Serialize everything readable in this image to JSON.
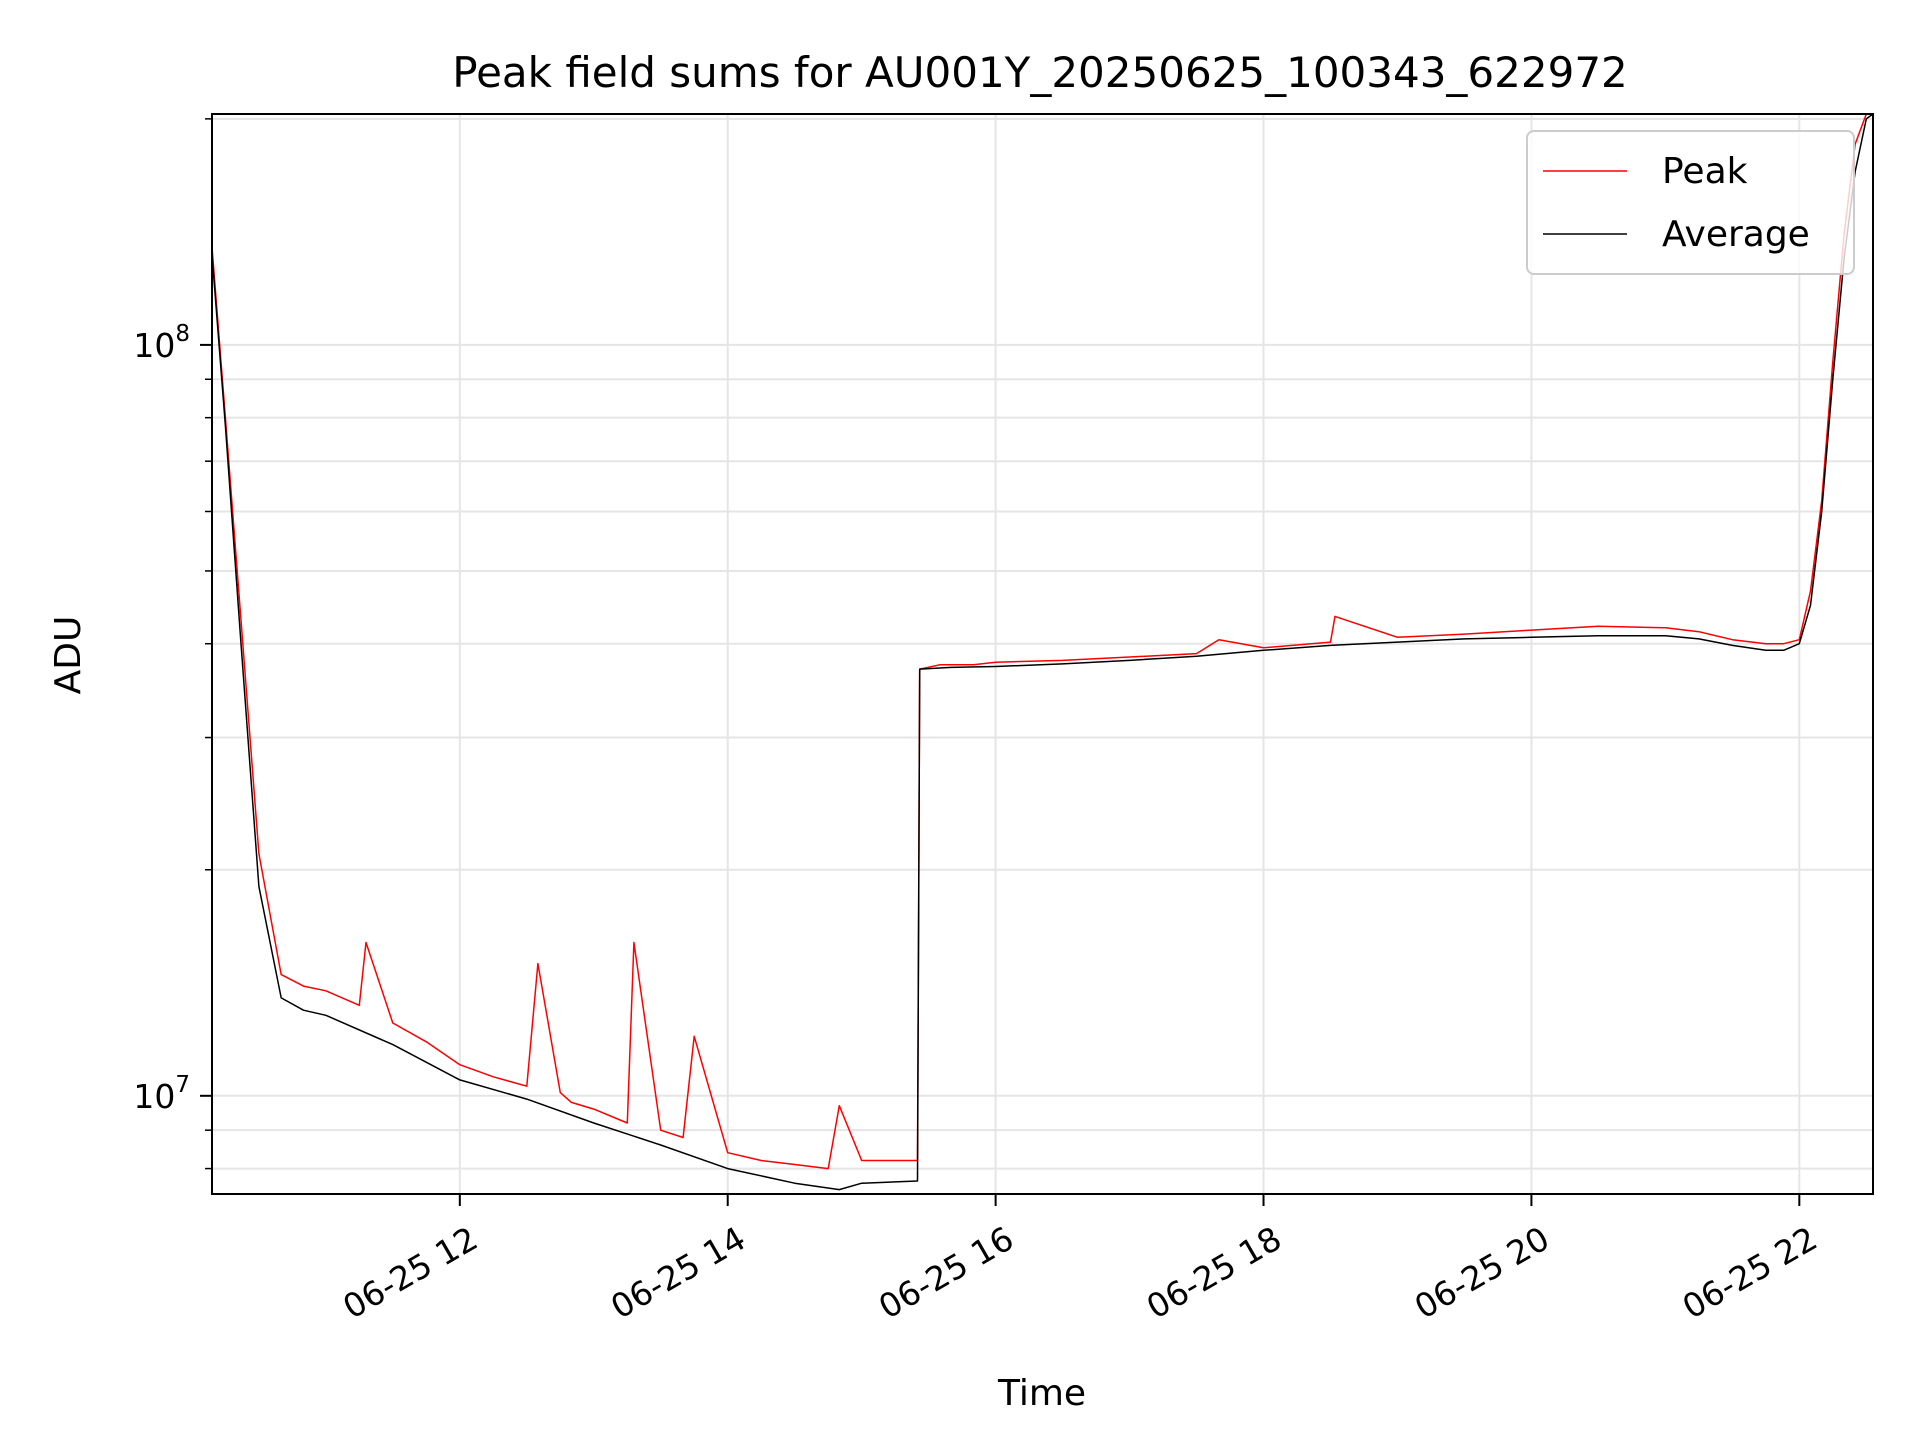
{
  "chart_data": {
    "type": "line",
    "title": "Peak field sums for AU001Y_20250625_100343_622972",
    "xlabel": "Time",
    "ylabel": "ADU",
    "x_scale": "time",
    "y_scale": "log",
    "grid": true,
    "legend_position": "top-right",
    "xlim": [
      "06-25 10:09",
      "06-25 22:33"
    ],
    "ylim": [
      7400000,
      203000000
    ],
    "x_ticks": [
      {
        "t": "06-25 12:00",
        "label": "06-25 12"
      },
      {
        "t": "06-25 14:00",
        "label": "06-25 14"
      },
      {
        "t": "06-25 16:00",
        "label": "06-25 16"
      },
      {
        "t": "06-25 18:00",
        "label": "06-25 18"
      },
      {
        "t": "06-25 20:00",
        "label": "06-25 20"
      },
      {
        "t": "06-25 22:00",
        "label": "06-25 22"
      }
    ],
    "y_ticks": [
      {
        "value": 10000000,
        "base": "10",
        "exp": "7"
      },
      {
        "value": 100000000,
        "base": "10",
        "exp": "8"
      }
    ],
    "series": [
      {
        "name": "Peak",
        "color": "#ff0000",
        "x": [
          "06-25 10:09",
          "06-25 10:15",
          "06-25 10:22",
          "06-25 10:30",
          "06-25 10:40",
          "06-25 10:50",
          "06-25 11:00",
          "06-25 11:15",
          "06-25 11:18",
          "06-25 11:30",
          "06-25 11:45",
          "06-25 12:00",
          "06-25 12:15",
          "06-25 12:30",
          "06-25 12:35",
          "06-25 12:45",
          "06-25 12:50",
          "06-25 13:00",
          "06-25 13:15",
          "06-25 13:18",
          "06-25 13:30",
          "06-25 13:40",
          "06-25 13:45",
          "06-25 14:00",
          "06-25 14:15",
          "06-25 14:30",
          "06-25 14:45",
          "06-25 14:50",
          "06-25 15:00",
          "06-25 15:15",
          "06-25 15:25",
          "06-25 15:26",
          "06-25 15:35",
          "06-25 15:50",
          "06-25 16:00",
          "06-25 16:30",
          "06-25 17:00",
          "06-25 17:30",
          "06-25 17:40",
          "06-25 18:00",
          "06-25 18:30",
          "06-25 18:32",
          "06-25 19:00",
          "06-25 19:30",
          "06-25 20:00",
          "06-25 20:30",
          "06-25 21:00",
          "06-25 21:15",
          "06-25 21:30",
          "06-25 21:45",
          "06-25 21:53",
          "06-25 22:00",
          "06-25 22:05",
          "06-25 22:10",
          "06-25 22:15",
          "06-25 22:20",
          "06-25 22:25",
          "06-25 22:30",
          "06-25 22:33"
        ],
        "y": [
          135000000,
          80000000,
          43000000,
          21000000,
          14500000,
          14000000,
          13800000,
          13200000,
          16000000,
          12500000,
          11800000,
          11000000,
          10600000,
          10300000,
          15000000,
          10100000,
          9800000,
          9600000,
          9200000,
          16000000,
          9000000,
          8800000,
          12000000,
          8400000,
          8200000,
          8100000,
          8000000,
          9700000,
          8200000,
          8200000,
          8200000,
          37000000,
          37500000,
          37500000,
          37800000,
          38000000,
          38400000,
          38800000,
          40500000,
          39500000,
          40200000,
          43500000,
          40800000,
          41200000,
          41700000,
          42200000,
          42000000,
          41500000,
          40500000,
          40000000,
          40000000,
          40500000,
          47000000,
          62000000,
          95000000,
          140000000,
          185000000,
          203000000,
          203000000
        ]
      },
      {
        "name": "Average",
        "color": "#000000",
        "x": [
          "06-25 10:09",
          "06-25 10:15",
          "06-25 10:22",
          "06-25 10:30",
          "06-25 10:40",
          "06-25 10:50",
          "06-25 11:00",
          "06-25 11:30",
          "06-25 12:00",
          "06-25 12:30",
          "06-25 13:00",
          "06-25 13:30",
          "06-25 14:00",
          "06-25 14:30",
          "06-25 14:50",
          "06-25 15:00",
          "06-25 15:25",
          "06-25 15:26",
          "06-25 15:40",
          "06-25 16:00",
          "06-25 16:30",
          "06-25 17:00",
          "06-25 17:30",
          "06-25 18:00",
          "06-25 18:30",
          "06-25 19:00",
          "06-25 19:30",
          "06-25 20:00",
          "06-25 20:30",
          "06-25 21:00",
          "06-25 21:15",
          "06-25 21:30",
          "06-25 21:45",
          "06-25 21:53",
          "06-25 22:00",
          "06-25 22:05",
          "06-25 22:10",
          "06-25 22:15",
          "06-25 22:20",
          "06-25 22:25",
          "06-25 22:30",
          "06-25 22:33"
        ],
        "y": [
          132000000,
          78000000,
          40000000,
          19000000,
          13500000,
          13000000,
          12800000,
          11700000,
          10500000,
          9900000,
          9200000,
          8600000,
          8000000,
          7650000,
          7500000,
          7650000,
          7700000,
          37000000,
          37200000,
          37300000,
          37600000,
          38000000,
          38500000,
          39200000,
          39800000,
          40200000,
          40600000,
          40800000,
          41000000,
          41000000,
          40600000,
          39800000,
          39200000,
          39200000,
          40000000,
          45000000,
          60000000,
          90000000,
          130000000,
          170000000,
          200000000,
          203000000
        ]
      }
    ]
  }
}
